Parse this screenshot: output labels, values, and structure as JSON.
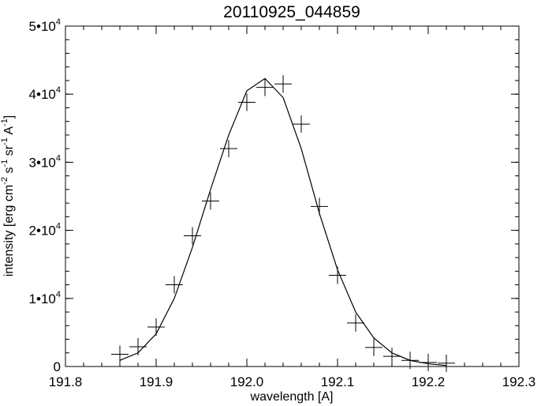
{
  "chart_data": {
    "type": "scatter",
    "title": "20110925_044859",
    "xlabel": "wavelength [A]",
    "ylabel_parts": [
      "intensity [erg cm",
      "-2",
      " s",
      "-1",
      " sr",
      "-1",
      " A",
      "-1",
      "]"
    ],
    "xlim": [
      191.8,
      192.3
    ],
    "ylim": [
      0,
      50000
    ],
    "x_ticks": [
      191.8,
      191.9,
      192.0,
      192.1,
      192.2,
      192.3
    ],
    "x_tick_labels": [
      "191.8",
      "191.9",
      "192.0",
      "192.1",
      "192.2",
      "192.3"
    ],
    "y_ticks": [
      0,
      10000,
      20000,
      30000,
      40000,
      50000
    ],
    "y_tick_labels": [
      {
        "mant": "0",
        "exp": ""
      },
      {
        "mant": "1•10",
        "exp": "4"
      },
      {
        "mant": "2•10",
        "exp": "4"
      },
      {
        "mant": "3•10",
        "exp": "4"
      },
      {
        "mant": "4•10",
        "exp": "4"
      },
      {
        "mant": "5•10",
        "exp": "4"
      }
    ],
    "series": [
      {
        "type": "scatter",
        "marker": "plus",
        "x": [
          191.86,
          191.88,
          191.9,
          191.92,
          191.94,
          191.96,
          191.98,
          192.0,
          192.02,
          192.04,
          192.06,
          192.08,
          192.1,
          192.12,
          192.14,
          192.16,
          192.18,
          192.2,
          192.22
        ],
        "y": [
          1800,
          2900,
          5800,
          12000,
          19200,
          24300,
          32000,
          38800,
          41000,
          41500,
          35600,
          23500,
          13400,
          6400,
          2800,
          1500,
          900,
          600,
          500
        ]
      },
      {
        "type": "line",
        "x": [
          191.86,
          191.88,
          191.9,
          191.92,
          191.94,
          191.96,
          191.98,
          192.0,
          192.02,
          192.04,
          192.06,
          192.08,
          192.1,
          192.12,
          192.14,
          192.16,
          192.18,
          192.2,
          192.22
        ],
        "y": [
          900,
          2000,
          4800,
          10000,
          17500,
          26000,
          34000,
          40500,
          42300,
          39500,
          32000,
          22500,
          14200,
          8000,
          4200,
          2000,
          900,
          400,
          150
        ]
      }
    ],
    "grid": false,
    "legend": "none"
  }
}
